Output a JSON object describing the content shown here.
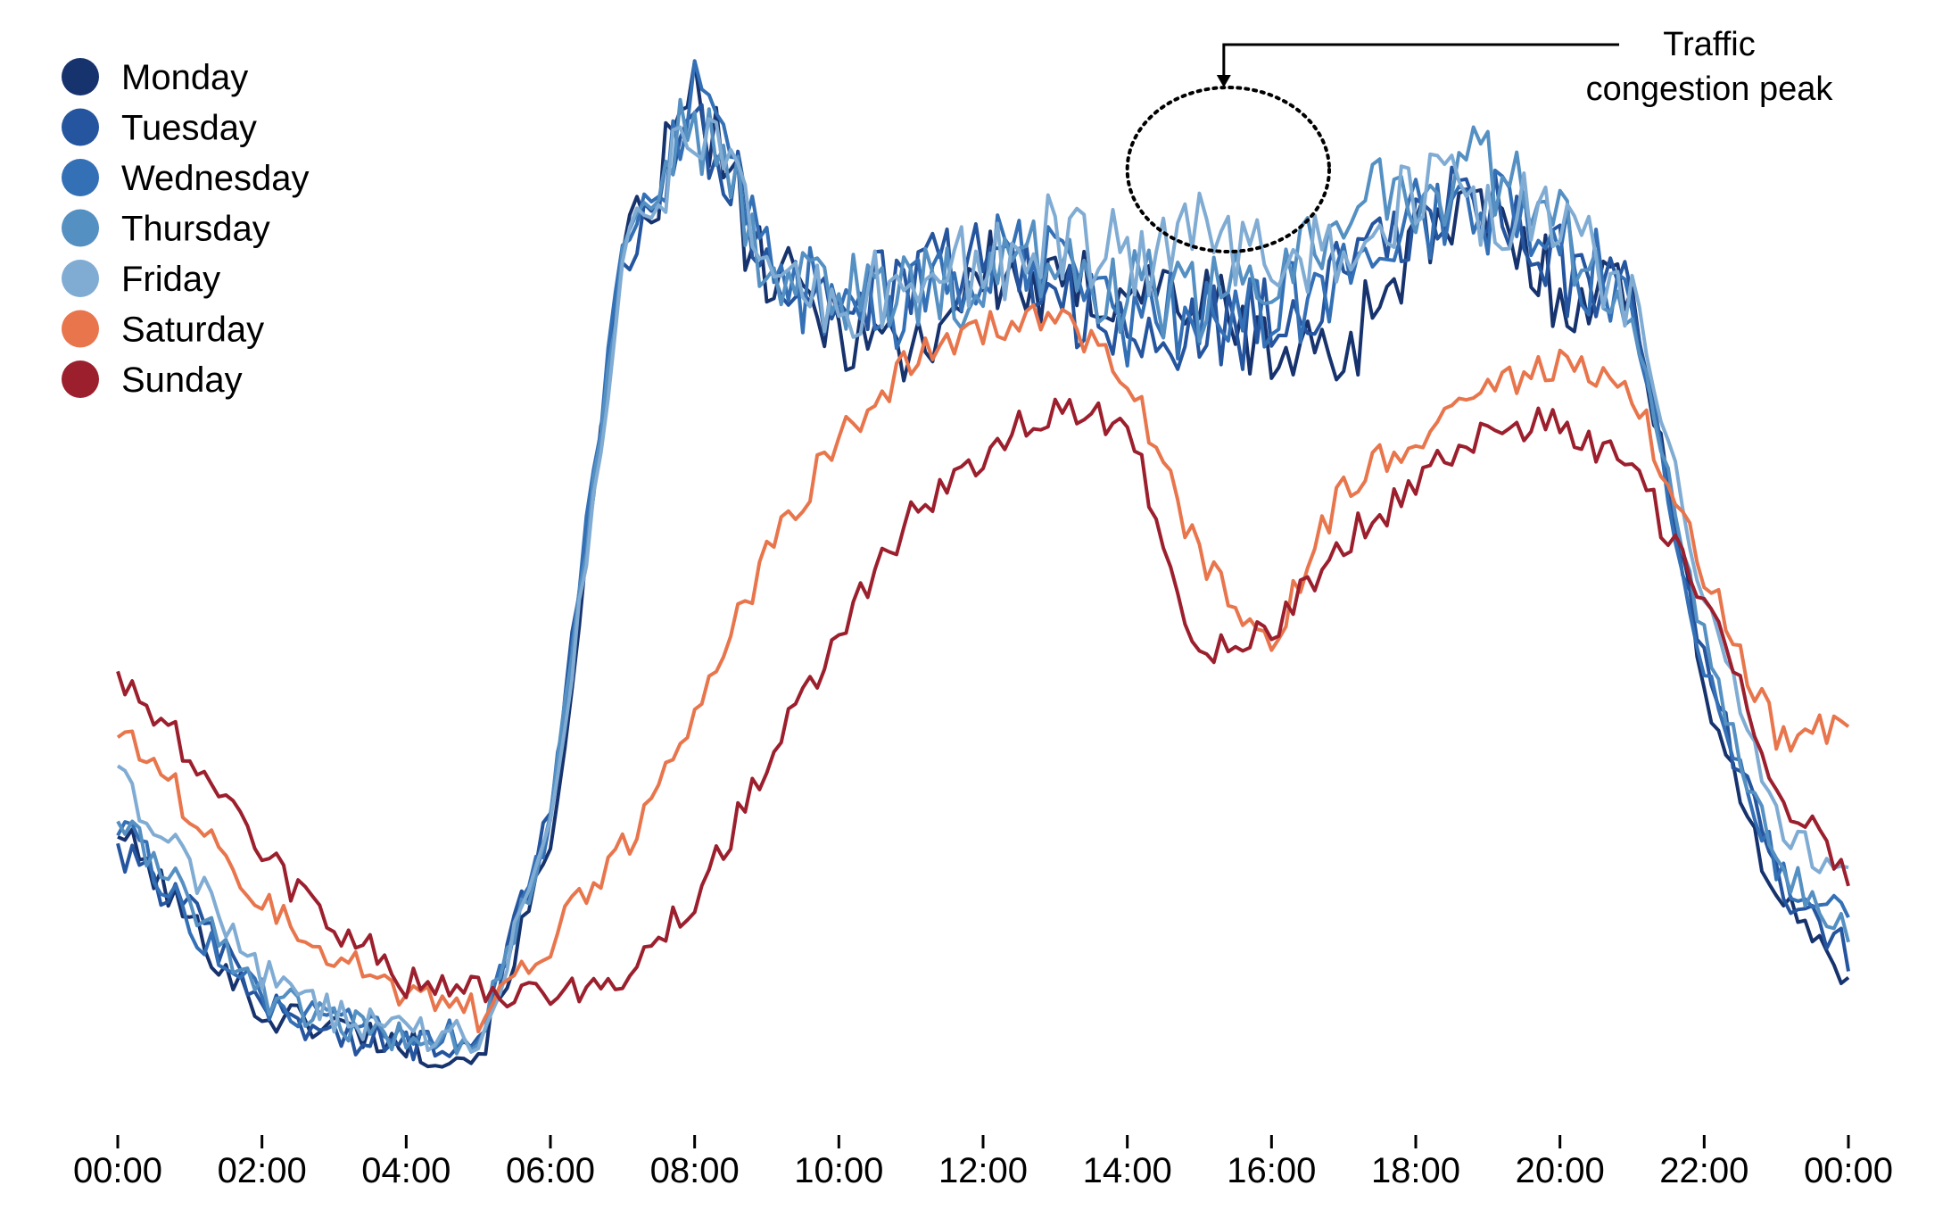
{
  "chart_data": {
    "type": "line",
    "title": "",
    "xlabel": "",
    "ylabel": "",
    "x_tick_labels": [
      "00:00",
      "02:00",
      "04:00",
      "06:00",
      "08:00",
      "10:00",
      "12:00",
      "14:00",
      "16:00",
      "18:00",
      "20:00",
      "22:00",
      "00:00"
    ],
    "x_range_hours": [
      0,
      24
    ],
    "y_axis_visible": false,
    "grid": false,
    "legend_position": "top-left",
    "annotation": {
      "line1": "Traffic",
      "line2": "congestion peak",
      "target_series": "Friday",
      "time_range_hours": [
        14.0,
        16.8
      ]
    },
    "series": [
      {
        "name": "Monday",
        "color": "#17336e",
        "values": [
          0.26,
          0.17,
          0.08,
          0.07,
          0.05,
          0.04,
          0.24,
          0.8,
          0.97,
          0.79,
          0.75,
          0.72,
          0.8,
          0.77,
          0.79,
          0.77,
          0.72,
          0.72,
          0.83,
          0.85,
          0.78,
          0.78,
          0.4,
          0.19,
          0.12
        ]
      },
      {
        "name": "Tuesday",
        "color": "#24559e",
        "values": [
          0.24,
          0.18,
          0.09,
          0.06,
          0.05,
          0.06,
          0.27,
          0.82,
          0.96,
          0.81,
          0.77,
          0.78,
          0.82,
          0.79,
          0.72,
          0.74,
          0.75,
          0.79,
          0.84,
          0.87,
          0.8,
          0.76,
          0.42,
          0.21,
          0.14
        ]
      },
      {
        "name": "Wednesday",
        "color": "#3470b6",
        "values": [
          0.27,
          0.17,
          0.09,
          0.07,
          0.06,
          0.06,
          0.26,
          0.83,
          0.96,
          0.8,
          0.76,
          0.76,
          0.81,
          0.8,
          0.75,
          0.76,
          0.76,
          0.79,
          0.85,
          0.86,
          0.82,
          0.77,
          0.41,
          0.22,
          0.17
        ]
      },
      {
        "name": "Thursday",
        "color": "#5590c3",
        "values": [
          0.27,
          0.19,
          0.1,
          0.07,
          0.06,
          0.06,
          0.26,
          0.82,
          0.95,
          0.81,
          0.78,
          0.78,
          0.79,
          0.81,
          0.78,
          0.77,
          0.79,
          0.86,
          0.88,
          0.9,
          0.84,
          0.75,
          0.44,
          0.23,
          0.16
        ]
      },
      {
        "name": "Friday",
        "color": "#80acd4",
        "values": [
          0.31,
          0.22,
          0.12,
          0.08,
          0.06,
          0.06,
          0.25,
          0.8,
          0.95,
          0.8,
          0.76,
          0.79,
          0.81,
          0.83,
          0.81,
          0.83,
          0.81,
          0.82,
          0.88,
          0.86,
          0.84,
          0.78,
          0.48,
          0.27,
          0.21
        ]
      },
      {
        "name": "Saturday",
        "color": "#e8754c",
        "values": [
          0.36,
          0.28,
          0.19,
          0.14,
          0.1,
          0.08,
          0.15,
          0.24,
          0.37,
          0.52,
          0.64,
          0.71,
          0.74,
          0.76,
          0.7,
          0.52,
          0.44,
          0.59,
          0.64,
          0.69,
          0.71,
          0.68,
          0.51,
          0.35,
          0.36
        ]
      },
      {
        "name": "Sunday",
        "color": "#9c1f2d",
        "values": [
          0.41,
          0.33,
          0.23,
          0.17,
          0.11,
          0.1,
          0.1,
          0.12,
          0.19,
          0.32,
          0.45,
          0.56,
          0.62,
          0.67,
          0.65,
          0.42,
          0.45,
          0.54,
          0.59,
          0.65,
          0.65,
          0.61,
          0.48,
          0.3,
          0.22
        ]
      }
    ]
  }
}
